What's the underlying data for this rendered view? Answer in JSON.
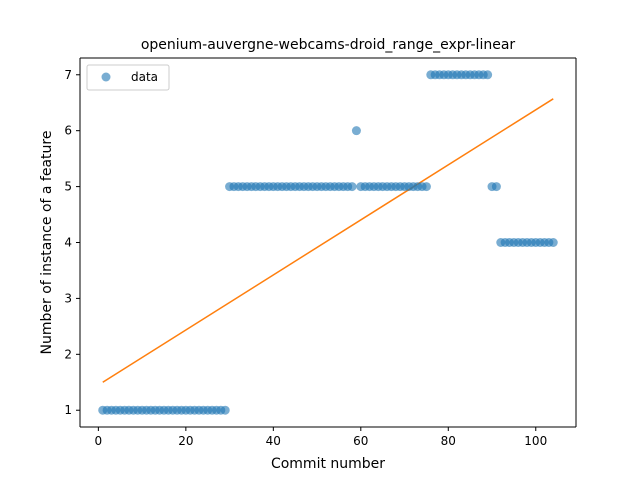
{
  "chart_data": {
    "type": "scatter",
    "title": "openium-auvergne-webcams-droid_range_expr-linear",
    "xlabel": "Commit number",
    "ylabel": "Number of instance of a feature",
    "xlim": [
      -4.2,
      109.2
    ],
    "ylim": [
      0.7,
      7.3
    ],
    "xticks": [
      0,
      20,
      40,
      60,
      80,
      100
    ],
    "yticks": [
      1,
      2,
      3,
      4,
      5,
      6,
      7
    ],
    "grid": false,
    "legend_position": "upper-left",
    "legend": [
      "data"
    ],
    "colors": {
      "data": "#1f77b4",
      "fit": "#ff7f0e"
    },
    "series": [
      {
        "name": "data",
        "x": [
          1,
          2,
          3,
          4,
          5,
          6,
          7,
          8,
          9,
          10,
          11,
          12,
          13,
          14,
          15,
          16,
          17,
          18,
          19,
          20,
          21,
          22,
          23,
          24,
          25,
          26,
          27,
          28,
          29,
          30,
          31,
          32,
          33,
          34,
          35,
          36,
          37,
          38,
          39,
          40,
          41,
          42,
          43,
          44,
          45,
          46,
          47,
          48,
          49,
          50,
          51,
          52,
          53,
          54,
          55,
          56,
          57,
          58,
          59,
          60,
          61,
          62,
          63,
          64,
          65,
          66,
          67,
          68,
          69,
          70,
          71,
          72,
          73,
          74,
          75,
          76,
          77,
          78,
          79,
          80,
          81,
          82,
          83,
          84,
          85,
          86,
          87,
          88,
          89,
          90,
          91,
          92,
          93,
          94,
          95,
          96,
          97,
          98,
          99,
          100,
          101,
          102,
          103,
          104
        ],
        "y": [
          1,
          1,
          1,
          1,
          1,
          1,
          1,
          1,
          1,
          1,
          1,
          1,
          1,
          1,
          1,
          1,
          1,
          1,
          1,
          1,
          1,
          1,
          1,
          1,
          1,
          1,
          1,
          1,
          1,
          5,
          5,
          5,
          5,
          5,
          5,
          5,
          5,
          5,
          5,
          5,
          5,
          5,
          5,
          5,
          5,
          5,
          5,
          5,
          5,
          5,
          5,
          5,
          5,
          5,
          5,
          5,
          5,
          5,
          6,
          5,
          5,
          5,
          5,
          5,
          5,
          5,
          5,
          5,
          5,
          5,
          5,
          5,
          5,
          5,
          5,
          7,
          7,
          7,
          7,
          7,
          7,
          7,
          7,
          7,
          7,
          7,
          7,
          7,
          7,
          5,
          5,
          4,
          4,
          4,
          4,
          4,
          4,
          4,
          4,
          4,
          4,
          4,
          4,
          4
        ]
      }
    ],
    "fit_line": {
      "x": [
        1,
        104
      ],
      "y": [
        1.5,
        6.57
      ]
    }
  }
}
